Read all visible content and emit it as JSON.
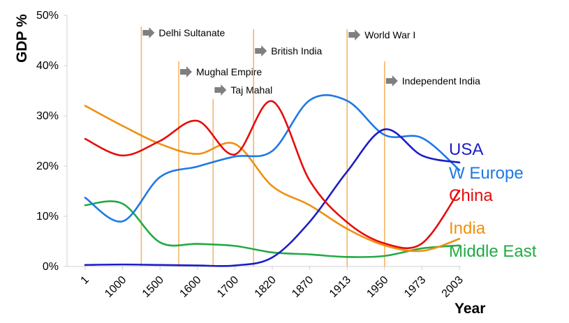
{
  "chart_data": {
    "type": "line",
    "title": "",
    "xlabel": "Year",
    "ylabel": "GDP %",
    "ylim": [
      0,
      50
    ],
    "yticks": [
      0,
      10,
      20,
      30,
      40,
      50
    ],
    "ytick_labels": [
      "0%",
      "10%",
      "20%",
      "30%",
      "40%",
      "50%"
    ],
    "grid": false,
    "categories": [
      "1",
      "1000",
      "1500",
      "1600",
      "1700",
      "1820",
      "1870",
      "1913",
      "1950",
      "1973",
      "2003"
    ],
    "series": [
      {
        "name": "USA",
        "color": "#1c1cc8",
        "values": [
          0.3,
          0.4,
          0.3,
          0.2,
          0.2,
          1.8,
          8.9,
          18.9,
          27.3,
          22.1,
          20.7
        ]
      },
      {
        "name": "W Europe",
        "color": "#1e78e6",
        "values": [
          13.7,
          9.0,
          17.8,
          19.9,
          21.9,
          23.0,
          33.1,
          33.0,
          26.2,
          25.6,
          19.2
        ]
      },
      {
        "name": "China",
        "color": "#e60c0c",
        "values": [
          25.4,
          22.1,
          25.0,
          29.0,
          22.3,
          32.9,
          17.1,
          8.8,
          4.6,
          4.6,
          15.1
        ]
      },
      {
        "name": "India",
        "color": "#f0900f",
        "values": [
          32.0,
          28.0,
          24.4,
          22.4,
          24.4,
          16.0,
          12.2,
          7.5,
          4.2,
          3.1,
          5.5
        ]
      },
      {
        "name": "Middle East",
        "color": "#22aa44",
        "values": [
          12.2,
          12.5,
          4.8,
          4.5,
          4.1,
          2.8,
          2.4,
          1.9,
          2.1,
          3.6,
          4.2
        ]
      }
    ],
    "events": [
      {
        "label": "Delhi Sultanate",
        "year_position": 1.5
      },
      {
        "label": "Mughal Empire",
        "year_position": 2.5
      },
      {
        "label": "Taj Mahal",
        "year_position": 3.7
      },
      {
        "label": "British India",
        "year_position": 4.5
      },
      {
        "label": "World War I",
        "year_position": 7.0
      },
      {
        "label": "Independent India",
        "year_position": 8.0
      }
    ]
  }
}
